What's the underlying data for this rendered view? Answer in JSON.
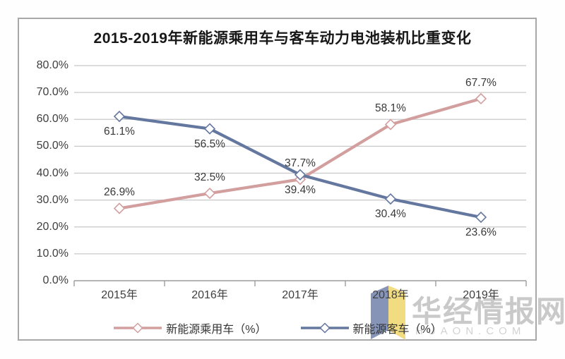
{
  "title": "2015-2019年新能源乘用车与客车动力电池装机比重变化",
  "chart_data": {
    "type": "line",
    "title": "2015-2019年新能源乘用车与客车动力电池装机比重变化",
    "categories": [
      "2015年",
      "2016年",
      "2017年",
      "2018年",
      "2019年"
    ],
    "series": [
      {
        "name": "新能源乘用车（%）",
        "values": [
          26.9,
          32.5,
          37.7,
          58.1,
          67.7
        ],
        "data_labels": [
          "26.9%",
          "32.5%",
          "37.7%",
          "58.1%",
          "67.7%"
        ],
        "color": "#d29e9e",
        "marker": "diamond",
        "label_position": "above"
      },
      {
        "name": "新能源客车（%）",
        "values": [
          61.1,
          56.5,
          39.4,
          30.4,
          23.6
        ],
        "data_labels": [
          "61.1%",
          "56.5%",
          "39.4%",
          "30.4%",
          "23.6%"
        ],
        "color": "#64779f",
        "marker": "diamond",
        "label_position": "below"
      }
    ],
    "xlabel": "",
    "ylabel": "",
    "ylim": [
      0,
      80
    ],
    "ytick_step": 10,
    "ytick_labels": [
      "0.0%",
      "10.0%",
      "20.0%",
      "30.0%",
      "40.0%",
      "50.0%",
      "60.0%",
      "70.0%",
      "80.0%"
    ],
    "grid": true,
    "legend_position": "bottom"
  },
  "colors": {
    "grid": "#c8c8c8",
    "axis": "#9c9c9c",
    "marker_fill": "#ffffff",
    "panel_border": "#a8a8a8",
    "watermark_text": "#c9c9c9",
    "logo_blue": "#8694b8",
    "logo_yellow": "#f2dc82"
  },
  "watermark": {
    "text": "华经情报网",
    "domain": "HUAON.COM"
  }
}
